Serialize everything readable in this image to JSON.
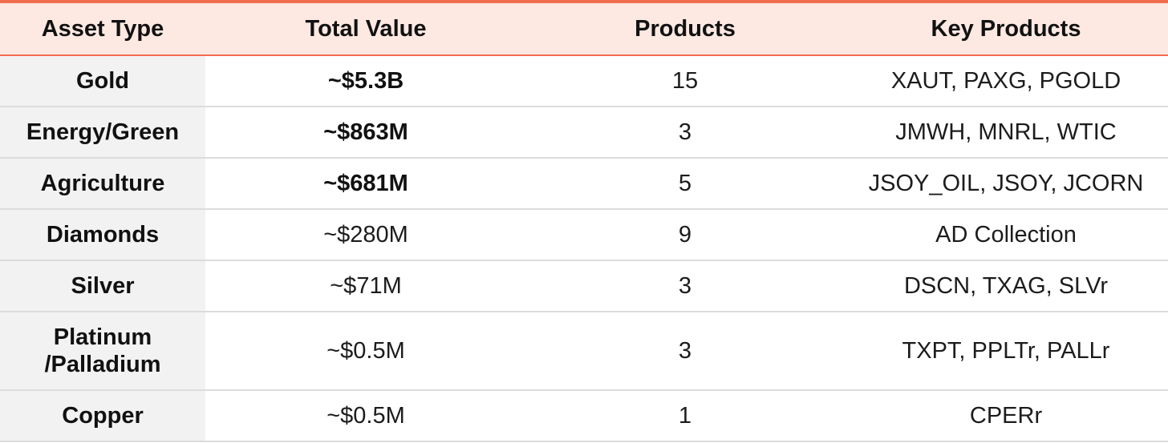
{
  "table": {
    "headers": {
      "asset_type": "Asset Type",
      "total_value": "Total Value",
      "products": "Products",
      "key_products": "Key Products"
    },
    "rows": [
      {
        "asset_type": "Gold",
        "total_value": "~$5.3B",
        "products": "15",
        "key_products": "XAUT, PAXG, PGOLD",
        "value_bold": true
      },
      {
        "asset_type": "Energy/Green",
        "total_value": "~$863M",
        "products": "3",
        "key_products": "JMWH, MNRL, WTIC",
        "value_bold": true
      },
      {
        "asset_type": "Agriculture",
        "total_value": "~$681M",
        "products": "5",
        "key_products": "JSOY_OIL, JSOY, JCORN",
        "value_bold": true
      },
      {
        "asset_type": "Diamonds",
        "total_value": "~$280M",
        "products": "9",
        "key_products": "AD Collection",
        "value_bold": false
      },
      {
        "asset_type": "Silver",
        "total_value": "~$71M",
        "products": "3",
        "key_products": "DSCN, TXAG, SLVr",
        "value_bold": false
      },
      {
        "asset_type": "Platinum\n/Palladium",
        "total_value": "~$0.5M",
        "products": "3",
        "key_products": "TXPT, PPLTr, PALLr",
        "value_bold": false
      },
      {
        "asset_type": "Copper",
        "total_value": "~$0.5M",
        "products": "1",
        "key_products": "CPERr",
        "value_bold": false
      }
    ],
    "colors": {
      "header_background": "#fde8e2",
      "header_border": "#f26d50",
      "first_column_background": "#f2f2f2",
      "row_divider": "#dcdcdc"
    }
  }
}
